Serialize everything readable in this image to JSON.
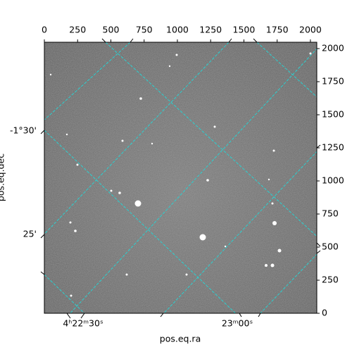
{
  "chart_data": {
    "type": "image",
    "xlabel": "pos.eq.ra",
    "ylabel": "pos.eq.dec",
    "xlim": [
      0,
      2048
    ],
    "ylim": [
      0,
      2048
    ],
    "xticks": [
      0,
      250,
      500,
      750,
      1000,
      1250,
      1500,
      1750,
      2000
    ],
    "yticks": [
      0,
      250,
      500,
      750,
      1000,
      1250,
      1500,
      1750,
      2000
    ],
    "ra_tick_labels": [
      "4ʰ22ᵐ30ˢ",
      "23ᵐ00ˢ"
    ],
    "dec_tick_labels": [
      "-1°30'",
      "25'"
    ],
    "grid": true,
    "grid_color": "#2ad1d1"
  }
}
